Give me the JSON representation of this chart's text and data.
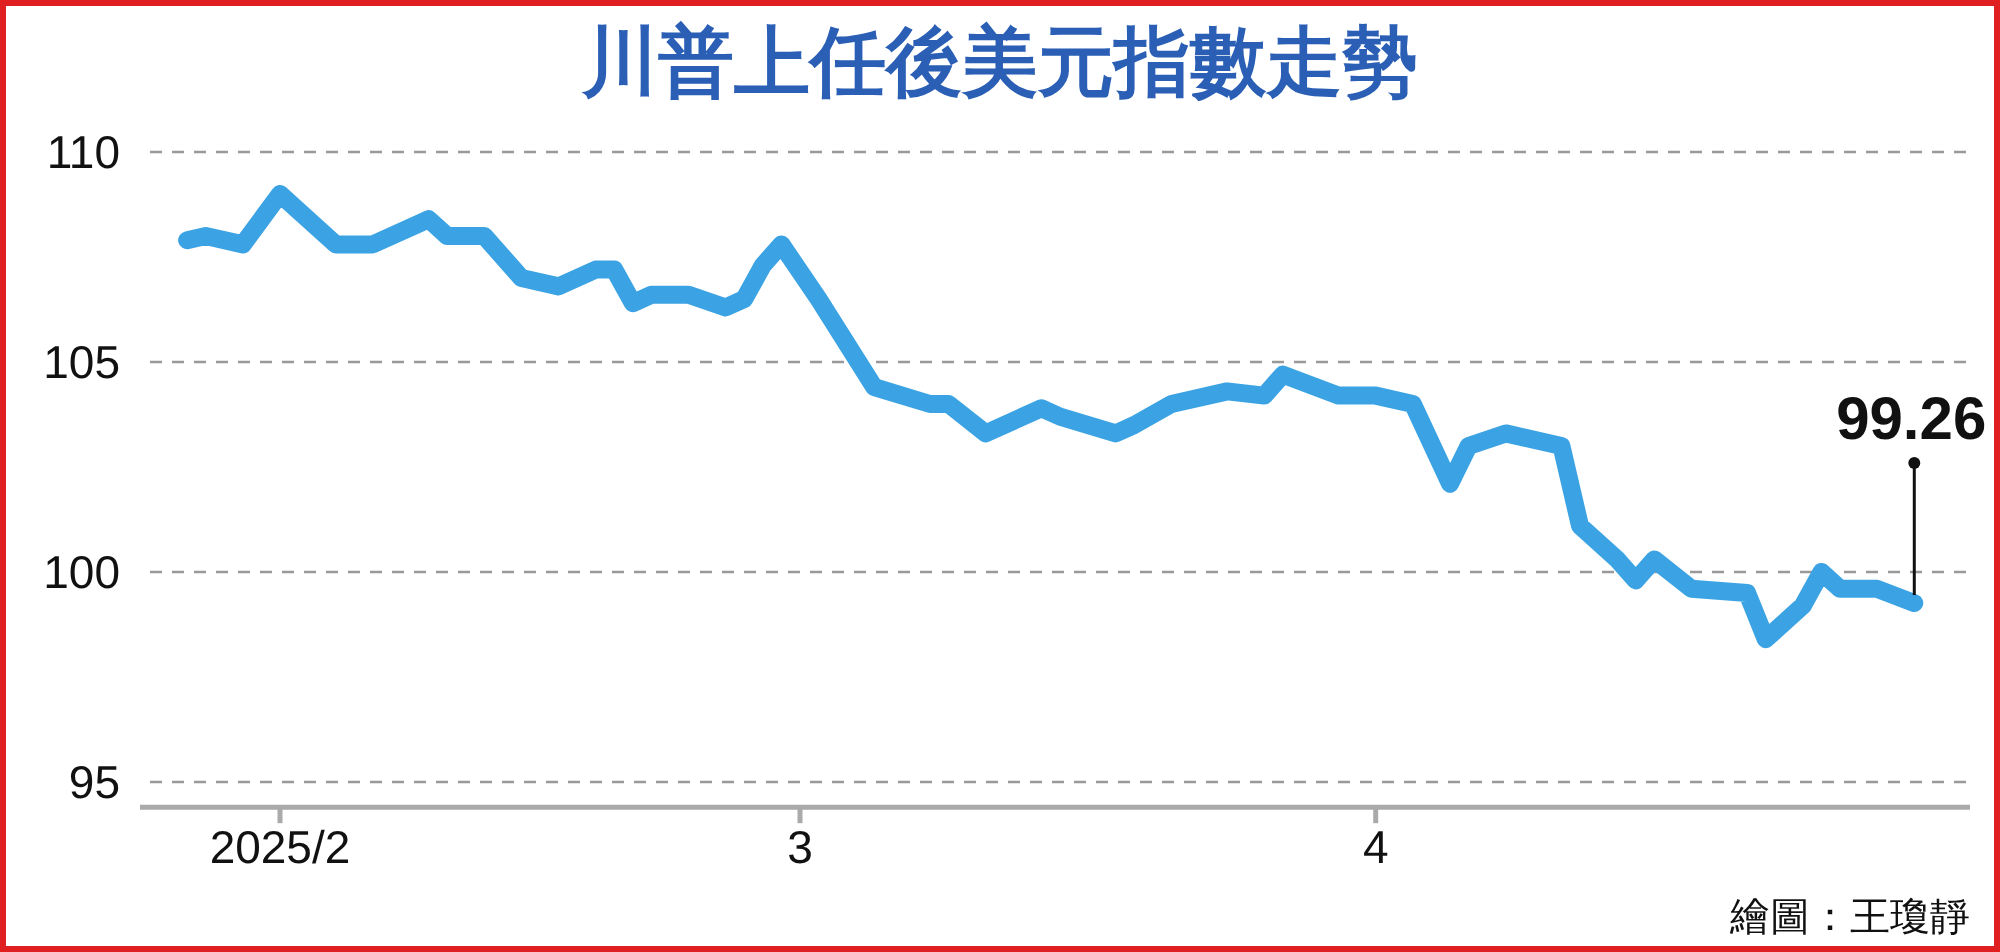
{
  "chart_data": {
    "type": "line",
    "title": "川普上任後美元指數走勢",
    "x": [
      "2025-01-27",
      "2025-01-28",
      "2025-01-30",
      "2025-02-01",
      "2025-02-04",
      "2025-02-06",
      "2025-02-09",
      "2025-02-10",
      "2025-02-12",
      "2025-02-14",
      "2025-02-16",
      "2025-02-18",
      "2025-02-19",
      "2025-02-20",
      "2025-02-21",
      "2025-02-23",
      "2025-02-25",
      "2025-02-26",
      "2025-02-27",
      "2025-02-28",
      "2025-03-02",
      "2025-03-05",
      "2025-03-08",
      "2025-03-09",
      "2025-03-11",
      "2025-03-14",
      "2025-03-15",
      "2025-03-18",
      "2025-03-19",
      "2025-03-21",
      "2025-03-24",
      "2025-03-26",
      "2025-03-27",
      "2025-03-30",
      "2025-04-01",
      "2025-04-03",
      "2025-04-05",
      "2025-04-06",
      "2025-04-08",
      "2025-04-11",
      "2025-04-12",
      "2025-04-14",
      "2025-04-15",
      "2025-04-16",
      "2025-04-18",
      "2025-04-21",
      "2025-04-22",
      "2025-04-24",
      "2025-04-25",
      "2025-04-26",
      "2025-04-28",
      "2025-04-30"
    ],
    "series": [
      {
        "color": "#3ba3e3",
        "values": [
          107.9,
          108.0,
          107.8,
          109.0,
          107.8,
          107.8,
          108.4,
          108.0,
          108.0,
          107.0,
          106.8,
          107.2,
          107.2,
          106.4,
          106.6,
          106.6,
          106.3,
          106.5,
          107.3,
          107.8,
          106.5,
          104.4,
          104.0,
          104.0,
          103.3,
          103.9,
          103.7,
          103.3,
          103.5,
          104.0,
          104.3,
          104.2,
          104.7,
          104.2,
          104.2,
          104.0,
          102.1,
          103.0,
          103.3,
          103.0,
          101.1,
          100.3,
          99.8,
          100.3,
          99.6,
          99.5,
          98.4,
          99.2,
          100.0,
          99.6,
          99.6,
          99.26
        ]
      }
    ],
    "xlim": [
      "2025-01-25",
      "2025-05-03"
    ],
    "xticks": [
      {
        "value": "2025-02-01",
        "label": "2025/2"
      },
      {
        "value": "2025-03-01",
        "label": "3"
      },
      {
        "value": "2025-04-01",
        "label": "4"
      }
    ],
    "ylim": [
      94.4,
      110
    ],
    "yticks": [
      95,
      100,
      105,
      110
    ],
    "grid": "y",
    "line_style": "solid",
    "marker": "none",
    "annotations": [
      {
        "text": "99.26",
        "x": "2025-04-30",
        "y": 99.26
      },
      "繪圖：王瓊靜"
    ]
  }
}
